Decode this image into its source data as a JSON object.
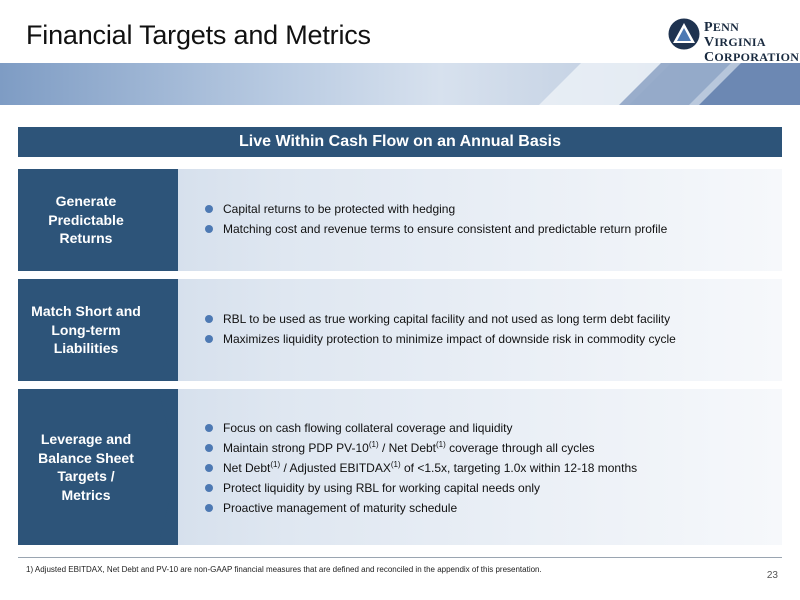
{
  "title": "Financial Targets and Metrics",
  "logo": {
    "line1_cap1": "P",
    "line1_rest1": "ENN ",
    "line1_cap2": "V",
    "line1_rest2": "IRGINIA",
    "line2_cap": "C",
    "line2_rest": "ORPORATION"
  },
  "header": "Live Within Cash Flow on an Annual Basis",
  "rows": [
    {
      "label": [
        "Generate",
        "Predictable",
        "Returns"
      ],
      "bullets": [
        "Capital returns to be protected with hedging",
        "Matching cost and revenue terms to ensure consistent and predictable return profile"
      ]
    },
    {
      "label": [
        "Match Short and",
        "Long-term",
        "Liabilities"
      ],
      "bullets": [
        "RBL to be used as true working capital facility and not used as long term debt facility",
        "Maximizes liquidity protection to minimize impact of downside risk in commodity cycle"
      ]
    },
    {
      "label": [
        "Leverage and",
        "Balance Sheet",
        "Targets /",
        "Metrics"
      ],
      "bullets": [
        "Focus on cash flowing collateral coverage and liquidity",
        {
          "p1": "Maintain strong PDP PV-10",
          "s1": "(1)",
          "p2": " / Net Debt",
          "s2": "(1)",
          "p3": " coverage through all cycles"
        },
        {
          "p1": "Net Debt",
          "s1": "(1)",
          "p2": " / Adjusted EBITDAX",
          "s2": "(1)",
          "p3": " of <1.5x, targeting 1.0x within 12-18 months"
        },
        "Protect liquidity by using RBL for working capital needs only",
        "Proactive management of maturity schedule"
      ]
    }
  ],
  "footnote": "1) Adjusted EBITDAX, Net Debt and PV-10 are non-GAAP financial measures that are defined and reconciled in the appendix of this presentation.",
  "page_number": "23",
  "colors": {
    "navy": "#2d5479",
    "bullet": "#4d79b3"
  }
}
